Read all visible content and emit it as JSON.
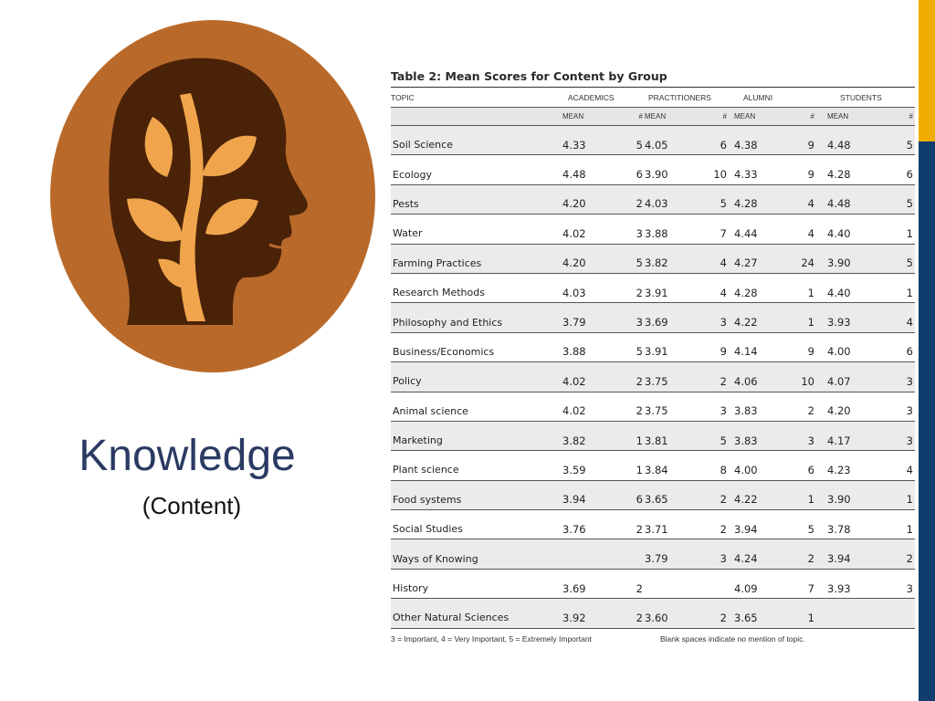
{
  "slide": {
    "title": "Knowledge",
    "subtitle": "(Content)"
  },
  "colors": {
    "accent_gold": "#f2ae00",
    "accent_navy": "#0f3d6e",
    "emblem_orange": "#b96a2a",
    "emblem_dark": "#4a2208",
    "emblem_leaf": "#f0a54c",
    "title_color": "#2a3a63"
  },
  "emblem": {
    "icon": "head-with-sprouting-tree-icon"
  },
  "table": {
    "caption": "Table 2: Mean Scores for Content by Group",
    "topic_header": "TOPIC",
    "groups": [
      "ACADEMICS",
      "PRACTITIONERS",
      "ALUMNI",
      "STUDENTS"
    ],
    "sub_mean": "MEAN",
    "sub_count": "#",
    "rows": [
      {
        "topic": "Soil Science",
        "cells": [
          "4.33",
          "5",
          "4.05",
          "6",
          "4.38",
          "9",
          "4.48",
          "5"
        ]
      },
      {
        "topic": "Ecology",
        "cells": [
          "4.48",
          "6",
          "3.90",
          "10",
          "4.33",
          "9",
          "4.28",
          "6"
        ]
      },
      {
        "topic": "Pests",
        "cells": [
          "4.20",
          "2",
          "4.03",
          "5",
          "4.28",
          "4",
          "4.48",
          "5"
        ]
      },
      {
        "topic": "Water",
        "cells": [
          "4.02",
          "3",
          "3.88",
          "7",
          "4.44",
          "4",
          "4.40",
          "1"
        ]
      },
      {
        "topic": "Farming Practices",
        "cells": [
          "4.20",
          "5",
          "3.82",
          "4",
          "4.27",
          "24",
          "3.90",
          "5"
        ]
      },
      {
        "topic": "Research Methods",
        "cells": [
          "4.03",
          "2",
          "3.91",
          "4",
          "4.28",
          "1",
          "4.40",
          "1"
        ]
      },
      {
        "topic": "Philosophy and Ethics",
        "cells": [
          "3.79",
          "3",
          "3.69",
          "3",
          "4.22",
          "1",
          "3.93",
          "4"
        ]
      },
      {
        "topic": "Business/Economics",
        "cells": [
          "3.88",
          "5",
          "3.91",
          "9",
          "4.14",
          "9",
          "4.00",
          "6"
        ]
      },
      {
        "topic": "Policy",
        "cells": [
          "4.02",
          "2",
          "3.75",
          "2",
          "4.06",
          "10",
          "4.07",
          "3"
        ]
      },
      {
        "topic": "Animal science",
        "cells": [
          "4.02",
          "2",
          "3.75",
          "3",
          "3.83",
          "2",
          "4.20",
          "3"
        ]
      },
      {
        "topic": "Marketing",
        "cells": [
          "3.82",
          "1",
          "3.81",
          "5",
          "3.83",
          "3",
          "4.17",
          "3"
        ]
      },
      {
        "topic": "Plant science",
        "cells": [
          "3.59",
          "1",
          "3.84",
          "8",
          "4.00",
          "6",
          "4.23",
          "4"
        ]
      },
      {
        "topic": "Food systems",
        "cells": [
          "3.94",
          "6",
          "3.65",
          "2",
          "4.22",
          "1",
          "3.90",
          "1"
        ]
      },
      {
        "topic": "Social Studies",
        "cells": [
          "3.76",
          "2",
          "3.71",
          "2",
          "3.94",
          "5",
          "3.78",
          "1"
        ]
      },
      {
        "topic": "Ways of Knowing",
        "cells": [
          "",
          "",
          "3.79",
          "3",
          "4.24",
          "2",
          "3.94",
          "2"
        ]
      },
      {
        "topic": "History",
        "cells": [
          "3.69",
          "2",
          "",
          "",
          "4.09",
          "7",
          "3.93",
          "3"
        ]
      },
      {
        "topic": "Other Natural Sciences",
        "cells": [
          "3.92",
          "2",
          "3.60",
          "2",
          "3.65",
          "1",
          "",
          ""
        ]
      }
    ],
    "footnote_scale": "3 = Important, 4 = Very Important, 5 = Extremely Important",
    "footnote_blank": "Blank spaces indicate no mention of topic."
  }
}
